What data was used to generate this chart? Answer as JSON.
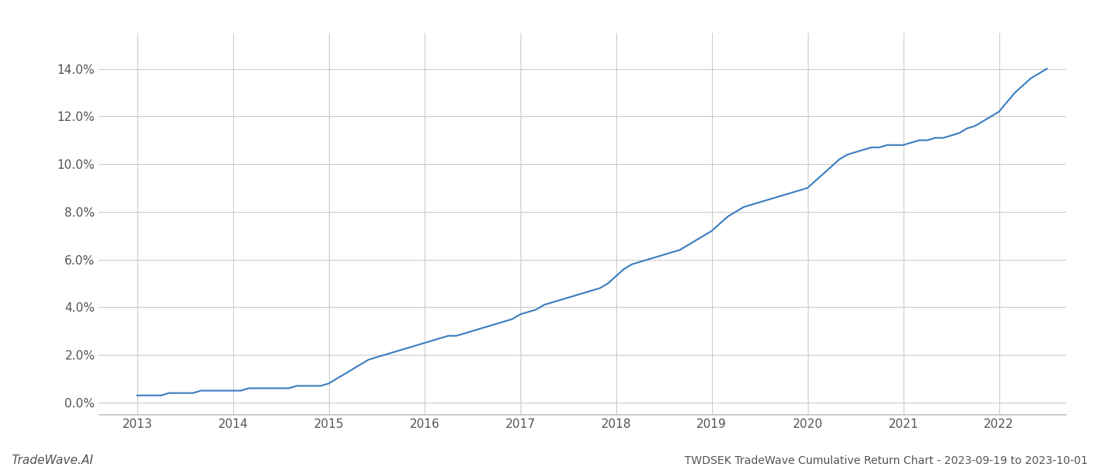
{
  "title": "TWDSEK TradeWave Cumulative Return Chart - 2023-09-19 to 2023-10-01",
  "watermark": "TradeWave.AI",
  "line_color": "#3a7ebf",
  "background_color": "#ffffff",
  "grid_color": "#cccccc",
  "x_values": [
    2013.0,
    2013.083,
    2013.167,
    2013.25,
    2013.333,
    2013.417,
    2013.5,
    2013.583,
    2013.667,
    2013.75,
    2013.833,
    2013.917,
    2014.0,
    2014.083,
    2014.167,
    2014.25,
    2014.333,
    2014.417,
    2014.5,
    2014.583,
    2014.667,
    2014.75,
    2014.833,
    2014.917,
    2015.0,
    2015.083,
    2015.167,
    2015.25,
    2015.333,
    2015.417,
    2015.5,
    2015.583,
    2015.667,
    2015.75,
    2015.833,
    2015.917,
    2016.0,
    2016.083,
    2016.167,
    2016.25,
    2016.333,
    2016.417,
    2016.5,
    2016.583,
    2016.667,
    2016.75,
    2016.833,
    2016.917,
    2017.0,
    2017.083,
    2017.167,
    2017.25,
    2017.333,
    2017.417,
    2017.5,
    2017.583,
    2017.667,
    2017.75,
    2017.833,
    2017.917,
    2018.0,
    2018.083,
    2018.167,
    2018.25,
    2018.333,
    2018.417,
    2018.5,
    2018.583,
    2018.667,
    2018.75,
    2018.833,
    2018.917,
    2019.0,
    2019.083,
    2019.167,
    2019.25,
    2019.333,
    2019.417,
    2019.5,
    2019.583,
    2019.667,
    2019.75,
    2019.833,
    2019.917,
    2020.0,
    2020.083,
    2020.167,
    2020.25,
    2020.333,
    2020.417,
    2020.5,
    2020.583,
    2020.667,
    2020.75,
    2020.833,
    2020.917,
    2021.0,
    2021.083,
    2021.167,
    2021.25,
    2021.333,
    2021.417,
    2021.5,
    2021.583,
    2021.667,
    2021.75,
    2021.833,
    2021.917,
    2022.0,
    2022.083,
    2022.167,
    2022.25,
    2022.333,
    2022.417,
    2022.5
  ],
  "y_values": [
    0.003,
    0.003,
    0.003,
    0.003,
    0.004,
    0.004,
    0.004,
    0.004,
    0.005,
    0.005,
    0.005,
    0.005,
    0.005,
    0.005,
    0.006,
    0.006,
    0.006,
    0.006,
    0.006,
    0.006,
    0.007,
    0.007,
    0.007,
    0.007,
    0.008,
    0.01,
    0.012,
    0.014,
    0.016,
    0.018,
    0.019,
    0.02,
    0.021,
    0.022,
    0.023,
    0.024,
    0.025,
    0.026,
    0.027,
    0.028,
    0.028,
    0.029,
    0.03,
    0.031,
    0.032,
    0.033,
    0.034,
    0.035,
    0.037,
    0.038,
    0.039,
    0.041,
    0.042,
    0.043,
    0.044,
    0.045,
    0.046,
    0.047,
    0.048,
    0.05,
    0.053,
    0.056,
    0.058,
    0.059,
    0.06,
    0.061,
    0.062,
    0.063,
    0.064,
    0.066,
    0.068,
    0.07,
    0.072,
    0.075,
    0.078,
    0.08,
    0.082,
    0.083,
    0.084,
    0.085,
    0.086,
    0.087,
    0.088,
    0.089,
    0.09,
    0.093,
    0.096,
    0.099,
    0.102,
    0.104,
    0.105,
    0.106,
    0.107,
    0.107,
    0.108,
    0.108,
    0.108,
    0.109,
    0.11,
    0.11,
    0.111,
    0.111,
    0.112,
    0.113,
    0.115,
    0.116,
    0.118,
    0.12,
    0.122,
    0.126,
    0.13,
    0.133,
    0.136,
    0.138,
    0.14
  ],
  "xlim": [
    2012.6,
    2022.7
  ],
  "ylim": [
    -0.005,
    0.155
  ],
  "xticks": [
    2013,
    2014,
    2015,
    2016,
    2017,
    2018,
    2019,
    2020,
    2021,
    2022
  ],
  "yticks": [
    0.0,
    0.02,
    0.04,
    0.06,
    0.08,
    0.1,
    0.12,
    0.14
  ],
  "line_width": 1.5,
  "figsize": [
    14,
    6
  ],
  "dpi": 100
}
